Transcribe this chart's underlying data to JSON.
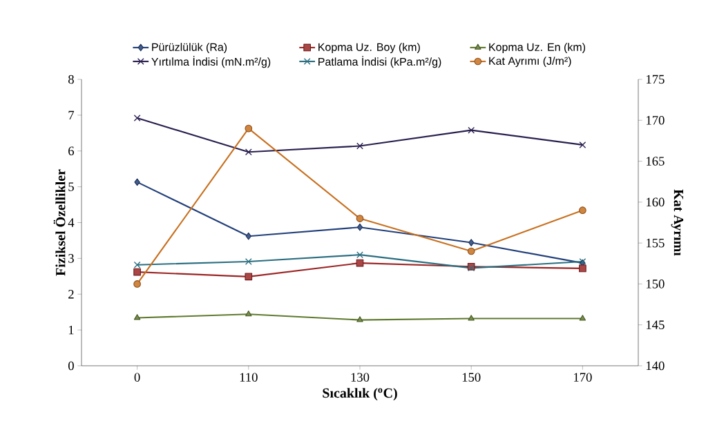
{
  "chart_data": {
    "type": "line",
    "xlabel": "Sıcaklık ($^{o}$C)",
    "ylabel": "Fiziksel Özellikler",
    "y2label": "Kat Ayrımı",
    "categories": [
      "0",
      "110",
      "130",
      "150",
      "170"
    ],
    "ylim": [
      0,
      8
    ],
    "yticks": [
      0,
      1,
      2,
      3,
      4,
      5,
      6,
      7,
      8
    ],
    "y2lim": [
      140,
      175
    ],
    "y2ticks": [
      140,
      145,
      150,
      155,
      160,
      165,
      170,
      175
    ],
    "legend": "top",
    "grid": false,
    "line_style": "solid",
    "series": [
      {
        "name": "Pürüzlülük (Ra)",
        "color": "#23407a",
        "marker": "diamond",
        "values": [
          5.13,
          3.62,
          3.87,
          3.44,
          2.87
        ]
      },
      {
        "name": "Kopma Uz. Boy (km)",
        "color": "#9b2525",
        "marker": "square",
        "values": [
          2.62,
          2.49,
          2.87,
          2.77,
          2.72
        ]
      },
      {
        "name": "Kopma Uz. En (km)",
        "color": "#5f7a2e",
        "marker": "triangle",
        "values": [
          1.34,
          1.44,
          1.28,
          1.32,
          1.32
        ]
      },
      {
        "name": "Yırtılma İndisi (mN.m²/g)",
        "color": "#2a1f4f",
        "marker": "cross",
        "values": [
          6.92,
          5.97,
          6.14,
          6.58,
          6.17
        ]
      },
      {
        "name": "Patlama İndisi (kPa.m²/g)",
        "color": "#2a6e80",
        "marker": "cross",
        "values": [
          2.82,
          2.91,
          3.1,
          2.73,
          2.91
        ]
      },
      {
        "name": "Kat Ayrımı (J/m²)",
        "color": "#c8701f",
        "marker": "circle",
        "axis": "y2",
        "values": [
          150,
          169,
          158,
          154,
          159
        ]
      }
    ]
  }
}
